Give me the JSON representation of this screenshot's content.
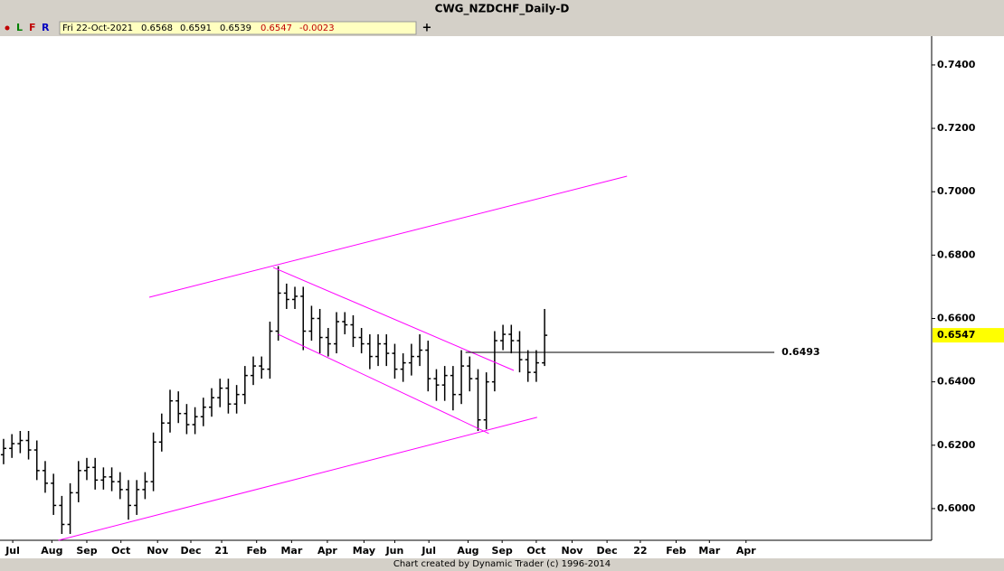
{
  "chart_data": {
    "type": "ohlc",
    "title": "CWG_NZDCHF_Daily-D",
    "menu": [
      "L",
      "F",
      "R"
    ],
    "info": {
      "date": "Fri 22-Oct-2021",
      "open": 0.6568,
      "high": 0.6591,
      "low": 0.6539,
      "close": 0.6547,
      "change": -0.0023
    },
    "footer": "Chart created by Dynamic Trader  (c) 1996-2014",
    "color": "#000000",
    "open": [
      0.617,
      0.619,
      0.6205,
      0.6215,
      0.6185,
      0.612,
      0.608,
      0.601,
      0.595,
      0.605,
      0.612,
      0.613,
      0.609,
      0.61,
      0.6085,
      0.606,
      0.601,
      0.606,
      0.6085,
      0.621,
      0.627,
      0.634,
      0.63,
      0.6265,
      0.629,
      0.632,
      0.635,
      0.638,
      0.633,
      0.636,
      0.642,
      0.645,
      0.644,
      0.656,
      0.668,
      0.666,
      0.667,
      0.656,
      0.66,
      0.654,
      0.652,
      0.659,
      0.658,
      0.654,
      0.652,
      0.648,
      0.652,
      0.649,
      0.644,
      0.646,
      0.648,
      0.65,
      0.641,
      0.639,
      0.642,
      0.636,
      0.645,
      0.641,
      0.628,
      0.64,
      0.653,
      0.655,
      0.653,
      0.647,
      0.643,
      0.646
    ],
    "high": [
      0.622,
      0.6235,
      0.6245,
      0.6245,
      0.6215,
      0.615,
      0.611,
      0.604,
      0.608,
      0.615,
      0.616,
      0.616,
      0.613,
      0.613,
      0.6115,
      0.609,
      0.609,
      0.6115,
      0.624,
      0.63,
      0.6375,
      0.637,
      0.633,
      0.632,
      0.635,
      0.638,
      0.641,
      0.641,
      0.639,
      0.645,
      0.648,
      0.648,
      0.659,
      0.6765,
      0.671,
      0.67,
      0.67,
      0.664,
      0.663,
      0.657,
      0.662,
      0.662,
      0.661,
      0.657,
      0.655,
      0.655,
      0.655,
      0.652,
      0.649,
      0.652,
      0.655,
      0.653,
      0.644,
      0.645,
      0.645,
      0.65,
      0.648,
      0.644,
      0.643,
      0.656,
      0.658,
      0.658,
      0.656,
      0.65,
      0.65,
      0.663
    ],
    "low": [
      0.614,
      0.616,
      0.6175,
      0.6155,
      0.609,
      0.605,
      0.598,
      0.592,
      0.592,
      0.602,
      0.609,
      0.606,
      0.606,
      0.6055,
      0.603,
      0.5965,
      0.598,
      0.603,
      0.6055,
      0.618,
      0.624,
      0.627,
      0.6235,
      0.6235,
      0.626,
      0.629,
      0.632,
      0.63,
      0.63,
      0.633,
      0.639,
      0.641,
      0.641,
      0.653,
      0.663,
      0.663,
      0.65,
      0.653,
      0.649,
      0.648,
      0.649,
      0.655,
      0.651,
      0.649,
      0.644,
      0.645,
      0.645,
      0.641,
      0.64,
      0.642,
      0.645,
      0.637,
      0.634,
      0.634,
      0.631,
      0.633,
      0.637,
      0.6245,
      0.625,
      0.637,
      0.65,
      0.649,
      0.643,
      0.64,
      0.64,
      0.645
    ],
    "close": [
      0.619,
      0.6205,
      0.6215,
      0.6185,
      0.612,
      0.608,
      0.601,
      0.595,
      0.605,
      0.612,
      0.613,
      0.609,
      0.61,
      0.6085,
      0.606,
      0.601,
      0.606,
      0.6085,
      0.621,
      0.627,
      0.634,
      0.63,
      0.6265,
      0.629,
      0.632,
      0.635,
      0.638,
      0.633,
      0.636,
      0.642,
      0.645,
      0.644,
      0.656,
      0.668,
      0.666,
      0.667,
      0.656,
      0.66,
      0.654,
      0.652,
      0.659,
      0.658,
      0.654,
      0.652,
      0.648,
      0.652,
      0.649,
      0.644,
      0.646,
      0.648,
      0.65,
      0.641,
      0.639,
      0.642,
      0.636,
      0.645,
      0.641,
      0.628,
      0.64,
      0.653,
      0.655,
      0.653,
      0.647,
      0.643,
      0.646,
      0.6547
    ],
    "xlim": [
      -0.43,
      111.5
    ],
    "xticks": [
      {
        "value": 1.1,
        "label": "Jul"
      },
      {
        "value": 5.8,
        "label": "Aug"
      },
      {
        "value": 10.0,
        "label": "Sep"
      },
      {
        "value": 14.1,
        "label": "Oct"
      },
      {
        "value": 18.5,
        "label": "Nov"
      },
      {
        "value": 22.5,
        "label": "Dec"
      },
      {
        "value": 26.2,
        "label": "21"
      },
      {
        "value": 30.4,
        "label": "Feb"
      },
      {
        "value": 34.6,
        "label": "Mar"
      },
      {
        "value": 38.9,
        "label": "Apr"
      },
      {
        "value": 43.3,
        "label": "May"
      },
      {
        "value": 47.0,
        "label": "Jun"
      },
      {
        "value": 51.1,
        "label": "Jul"
      },
      {
        "value": 55.8,
        "label": "Aug"
      },
      {
        "value": 59.9,
        "label": "Sep"
      },
      {
        "value": 64.0,
        "label": "Oct"
      },
      {
        "value": 68.3,
        "label": "Nov"
      },
      {
        "value": 72.5,
        "label": "Dec"
      },
      {
        "value": 76.5,
        "label": "22"
      },
      {
        "value": 80.8,
        "label": "Feb"
      },
      {
        "value": 84.8,
        "label": "Mar"
      },
      {
        "value": 89.2,
        "label": "Apr"
      }
    ],
    "ylim": [
      0.59,
      0.7491
    ],
    "yticks": [
      {
        "value": 0.6,
        "label": "0.6000"
      },
      {
        "value": 0.62,
        "label": "0.6200"
      },
      {
        "value": 0.64,
        "label": "0.6400"
      },
      {
        "value": 0.66,
        "label": "0.6600"
      },
      {
        "value": 0.68,
        "label": "0.6800"
      },
      {
        "value": 0.7,
        "label": "0.7000"
      },
      {
        "value": 0.72,
        "label": "0.7200"
      },
      {
        "value": 0.74,
        "label": "0.7400"
      }
    ],
    "lines_color": "#ff00ff",
    "lines": [
      {
        "x": [
          17.5,
          74.9
        ],
        "y": [
          0.6667,
          0.7049
        ]
      },
      {
        "x": [
          6.6,
          64.1
        ],
        "y": [
          0.59,
          0.6288
        ]
      },
      {
        "x": [
          32.4,
          61.3
        ],
        "y": [
          0.6761,
          0.6436
        ]
      },
      {
        "x": [
          33.0,
          58.3
        ],
        "y": [
          0.655,
          0.6237
        ]
      }
    ],
    "level": {
      "x": [
        55.5,
        92.6
      ],
      "value": 0.6493
    },
    "last_price": 0.6547
  }
}
